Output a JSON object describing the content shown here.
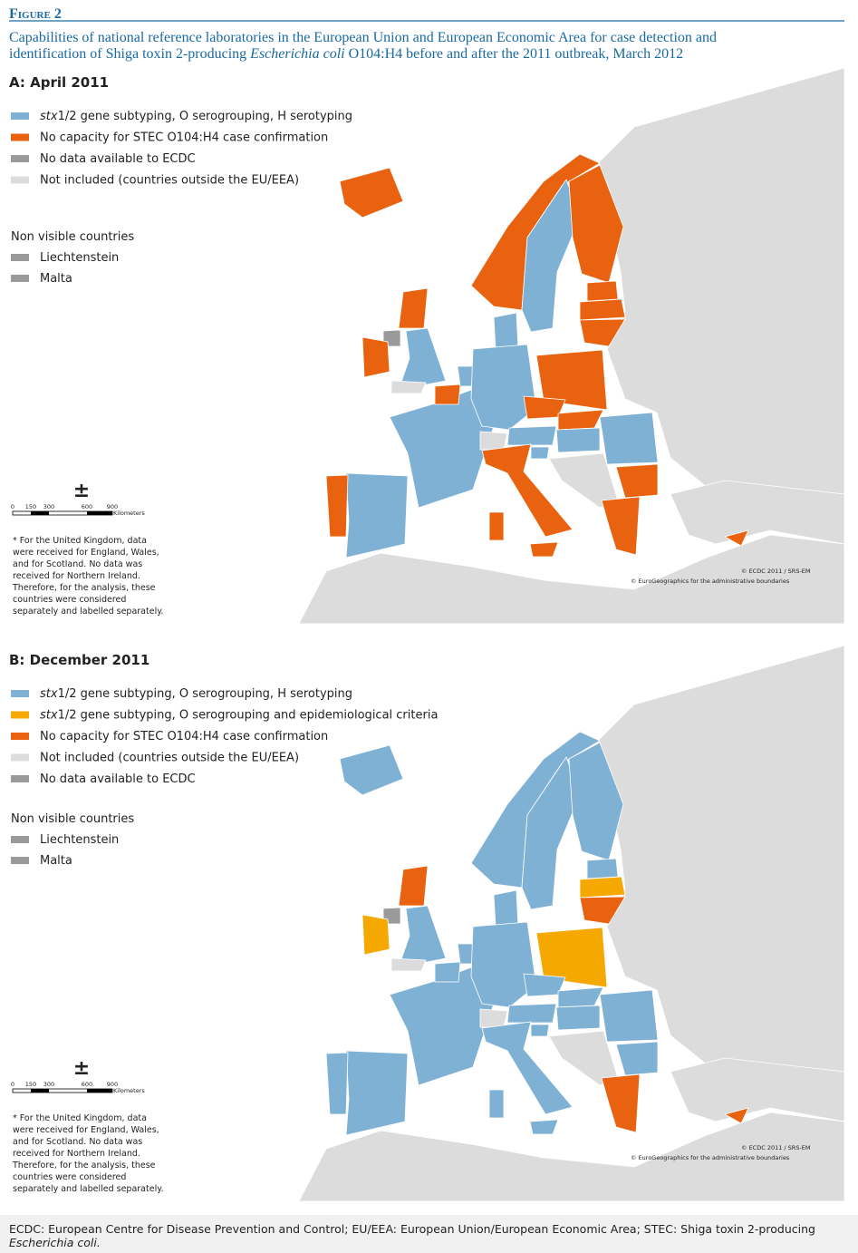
{
  "figure": {
    "label": "Figure 2",
    "caption": [
      [
        {
          "text": "Capabilities of national reference laboratories in the European Union and European Economic Area for case detection and"
        }
      ],
      [
        {
          "text": "identification of Shiga toxin 2-producing "
        },
        {
          "text": "Escherichia coli",
          "italic": true
        },
        {
          "text": " O104:H4 before and after the 2011 outbreak, March 2012"
        }
      ]
    ]
  },
  "panels": [
    {
      "title": "A: April 2011",
      "legend": [
        {
          "parts": [
            {
              "text": "stx",
              "italic": true
            },
            {
              "text": "1/2 gene subtyping, O serogrouping, H serotyping"
            }
          ],
          "color": "#7fb1d5"
        },
        {
          "parts": [
            {
              "text": "No capacity for STEC O104:H4 case confirmation"
            }
          ],
          "color": "#e8620f"
        },
        {
          "parts": [
            {
              "text": "No data available to ECDC"
            }
          ],
          "color": "#9a9a9a"
        },
        {
          "parts": [
            {
              "text": "Not included (countries outside the EU/EEA)"
            }
          ],
          "color": "#dcdcdc"
        }
      ],
      "non_visible_title": "Non visible countries",
      "non_visible": [
        {
          "name": "Liechtenstein",
          "color": "#9a9a9a"
        },
        {
          "name": "Malta",
          "color": "#9a9a9a"
        }
      ],
      "scale": {
        "symbol": "±",
        "labels": [
          "0",
          "150",
          "300",
          "600",
          "900"
        ],
        "unit": "Kilometers"
      },
      "footnote": [
        "* For the United Kingdom, data",
        "were received for England, Wales,",
        "and for Scotland. No data was",
        "received for Northern Ireland.",
        "Therefore, for the analysis, these",
        "countries were considered",
        "separately and labelled separately."
      ],
      "credits": [
        "© ECDC 2011 / SRS-EM",
        "© EuroGeographics for the administrative boundaries"
      ]
    },
    {
      "title": "B: December 2011",
      "legend": [
        {
          "parts": [
            {
              "text": "stx",
              "italic": true
            },
            {
              "text": "1/2 gene subtyping, O serogrouping, H serotyping"
            }
          ],
          "color": "#7fb1d5"
        },
        {
          "parts": [
            {
              "text": "stx",
              "italic": true
            },
            {
              "text": "1/2 gene subtyping, O serogrouping and epidemiological criteria"
            }
          ],
          "color": "#f5a800"
        },
        {
          "parts": [
            {
              "text": "No capacity for STEC O104:H4 case confirmation"
            }
          ],
          "color": "#e8620f"
        },
        {
          "parts": [
            {
              "text": "Not included (countries outside the EU/EEA)"
            }
          ],
          "color": "#dcdcdc"
        },
        {
          "parts": [
            {
              "text": "No data available to ECDC"
            }
          ],
          "color": "#9a9a9a"
        }
      ],
      "non_visible_title": "Non visible countries",
      "non_visible": [
        {
          "name": "Liechtenstein",
          "color": "#9a9a9a"
        },
        {
          "name": "Malta",
          "color": "#9a9a9a"
        }
      ],
      "scale": {
        "symbol": "±",
        "labels": [
          "0",
          "150",
          "300",
          "600",
          "900"
        ],
        "unit": "Kilometers"
      },
      "footnote": [
        "* For the United Kingdom, data",
        "were received for England, Wales,",
        "and for Scotland. No data was",
        "received for Northern Ireland.",
        "Therefore, for the analysis, these",
        "countries were considered",
        "separately and labelled separately."
      ],
      "credits": [
        "© ECDC 2011 / SRS-EM",
        "© EuroGeographics for the administrative boundaries"
      ]
    }
  ],
  "footer": [
    [
      {
        "text": "ECDC: European Centre for Disease Prevention and Control; EU/EEA: European Union/European Economic Area; STEC: Shiga toxin 2-producing"
      }
    ],
    [
      {
        "text": "Escherichia coli.",
        "italic": true
      }
    ]
  ]
}
